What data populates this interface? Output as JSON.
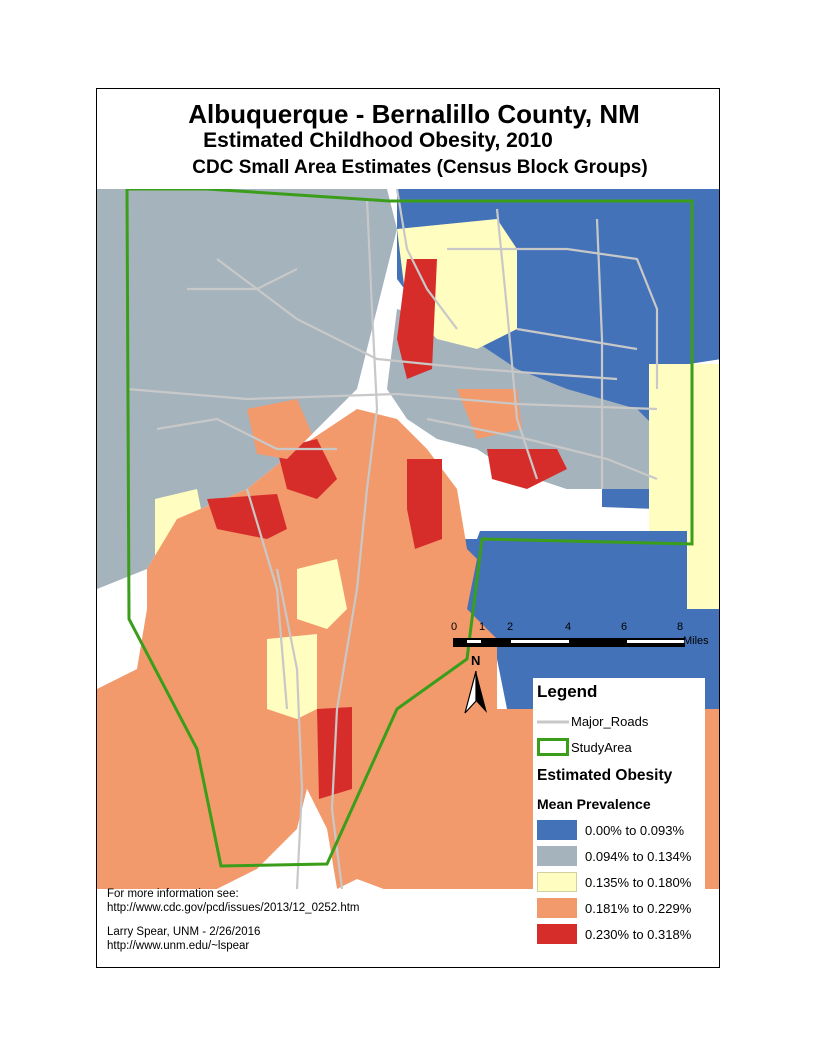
{
  "title": {
    "line1": "Albuquerque - Bernalillo County, NM",
    "line2": "Estimated Childhood Obesity, 2010",
    "line3": "CDC Small Area Estimates (Census Block Groups)"
  },
  "scalebar": {
    "ticks": [
      "0",
      "1",
      "2",
      "4",
      "6",
      "8"
    ],
    "unit": "Miles"
  },
  "north_arrow": {
    "label": "N"
  },
  "legend": {
    "heading": "Legend",
    "roads_label": "Major_Roads",
    "study_label": "StudyArea",
    "obesity_heading": "Estimated Obesity",
    "prevalence_heading": "Mean Prevalence",
    "classes": [
      {
        "label": "0.00% to 0.093%",
        "color": "#4472b8"
      },
      {
        "label": "0.094% to 0.134%",
        "color": "#a5b3bd"
      },
      {
        "label": "0.135% to 0.180%",
        "color": "#fffdc0"
      },
      {
        "label": "0.181% to 0.229%",
        "color": "#f29a6c"
      },
      {
        "label": "0.230% to 0.318%",
        "color": "#d72d2a"
      }
    ],
    "roads_color": "#c8c8c8",
    "study_color": "#3a9e1a"
  },
  "info": {
    "line1": "For more information see:",
    "line2": "http://www.cdc.gov/pcd/issues/2013/12_0252.htm",
    "line3": "Larry Spear, UNM - 2/26/2016",
    "line4": "http://www.unm.edu/~lspear"
  }
}
